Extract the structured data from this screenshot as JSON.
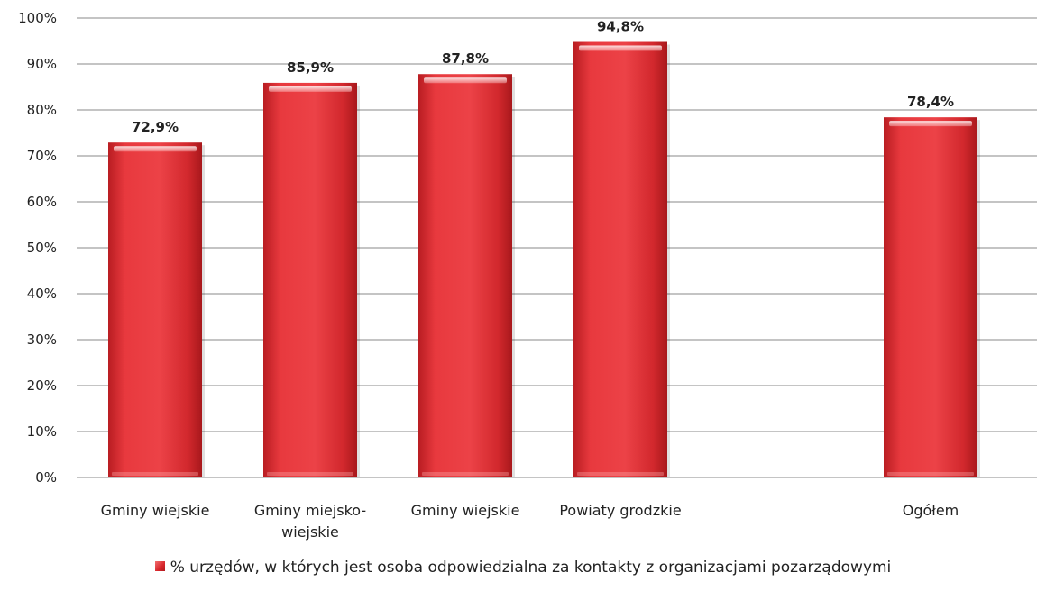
{
  "chart_data": {
    "type": "bar",
    "categories": [
      [
        "Gminy wiejskie"
      ],
      [
        "Gminy miejsko-",
        "wiejskie"
      ],
      [
        "Gminy wiejskie"
      ],
      [
        "Powiaty grodzkie"
      ],
      [
        "Ogółem"
      ]
    ],
    "category_positions": [
      0,
      1,
      2,
      3,
      5
    ],
    "series": [
      {
        "name": "% urzędów, w których jest osoba odpowiedzialna za kontakty z organizacjami pozarządowymi",
        "values": [
          72.9,
          85.9,
          87.8,
          94.8,
          78.4
        ],
        "labels": [
          "72,9%",
          "85,9%",
          "87,8%",
          "94,8%",
          "78,4%"
        ]
      }
    ],
    "ylim": [
      0,
      100
    ],
    "yticks": [
      0,
      10,
      20,
      30,
      40,
      50,
      60,
      70,
      80,
      90,
      100
    ],
    "ytick_labels": [
      "0%",
      "10%",
      "20%",
      "30%",
      "40%",
      "50%",
      "60%",
      "70%",
      "80%",
      "90%",
      "100%"
    ],
    "grid": true,
    "legend": "bottom",
    "colors": {
      "bar": "#e0353a",
      "bar_dark": "#b41c21",
      "bar_light": "#f47a7a",
      "grid": "#888888"
    }
  }
}
